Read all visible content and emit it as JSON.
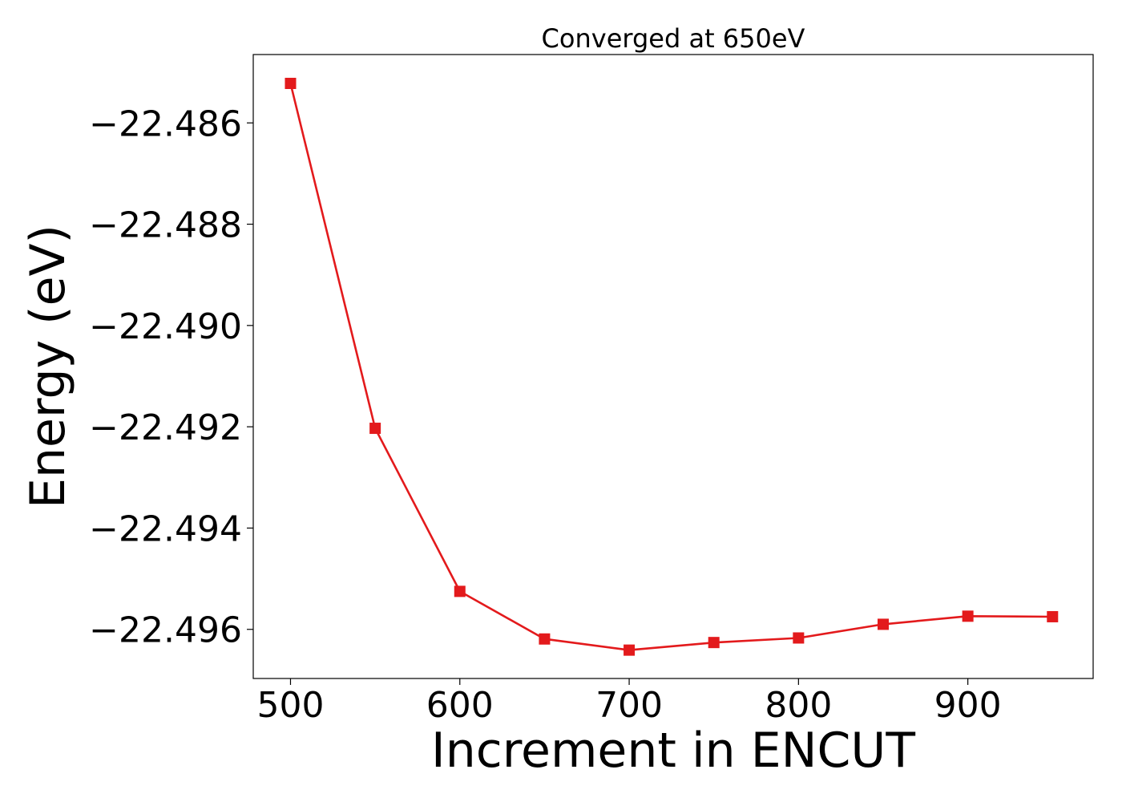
{
  "chart_data": {
    "type": "line",
    "title": "Converged at 650eV",
    "xlabel": "Increment in ENCUT",
    "ylabel": "Energy (eV)",
    "xlim": [
      478,
      974
    ],
    "ylim": [
      -22.49697,
      -22.48465
    ],
    "xticks": [
      500,
      600,
      700,
      800,
      900
    ],
    "xtick_labels": [
      "500",
      "600",
      "700",
      "800",
      "900"
    ],
    "yticks": [
      -22.486,
      -22.488,
      -22.49,
      -22.492,
      -22.494,
      -22.496
    ],
    "ytick_labels": [
      "−22.486",
      "−22.488",
      "−22.490",
      "−22.492",
      "−22.494",
      "−22.496"
    ],
    "grid": false,
    "legend": "none",
    "series": [
      {
        "color": "#e31a1c",
        "marker": "square",
        "x": [
          500,
          550,
          600,
          650,
          700,
          750,
          800,
          850,
          900,
          950
        ],
        "y": [
          -22.48522,
          -22.49203,
          -22.49525,
          -22.49619,
          -22.49641,
          -22.49626,
          -22.49617,
          -22.4959,
          -22.49574,
          -22.49575
        ]
      }
    ]
  }
}
